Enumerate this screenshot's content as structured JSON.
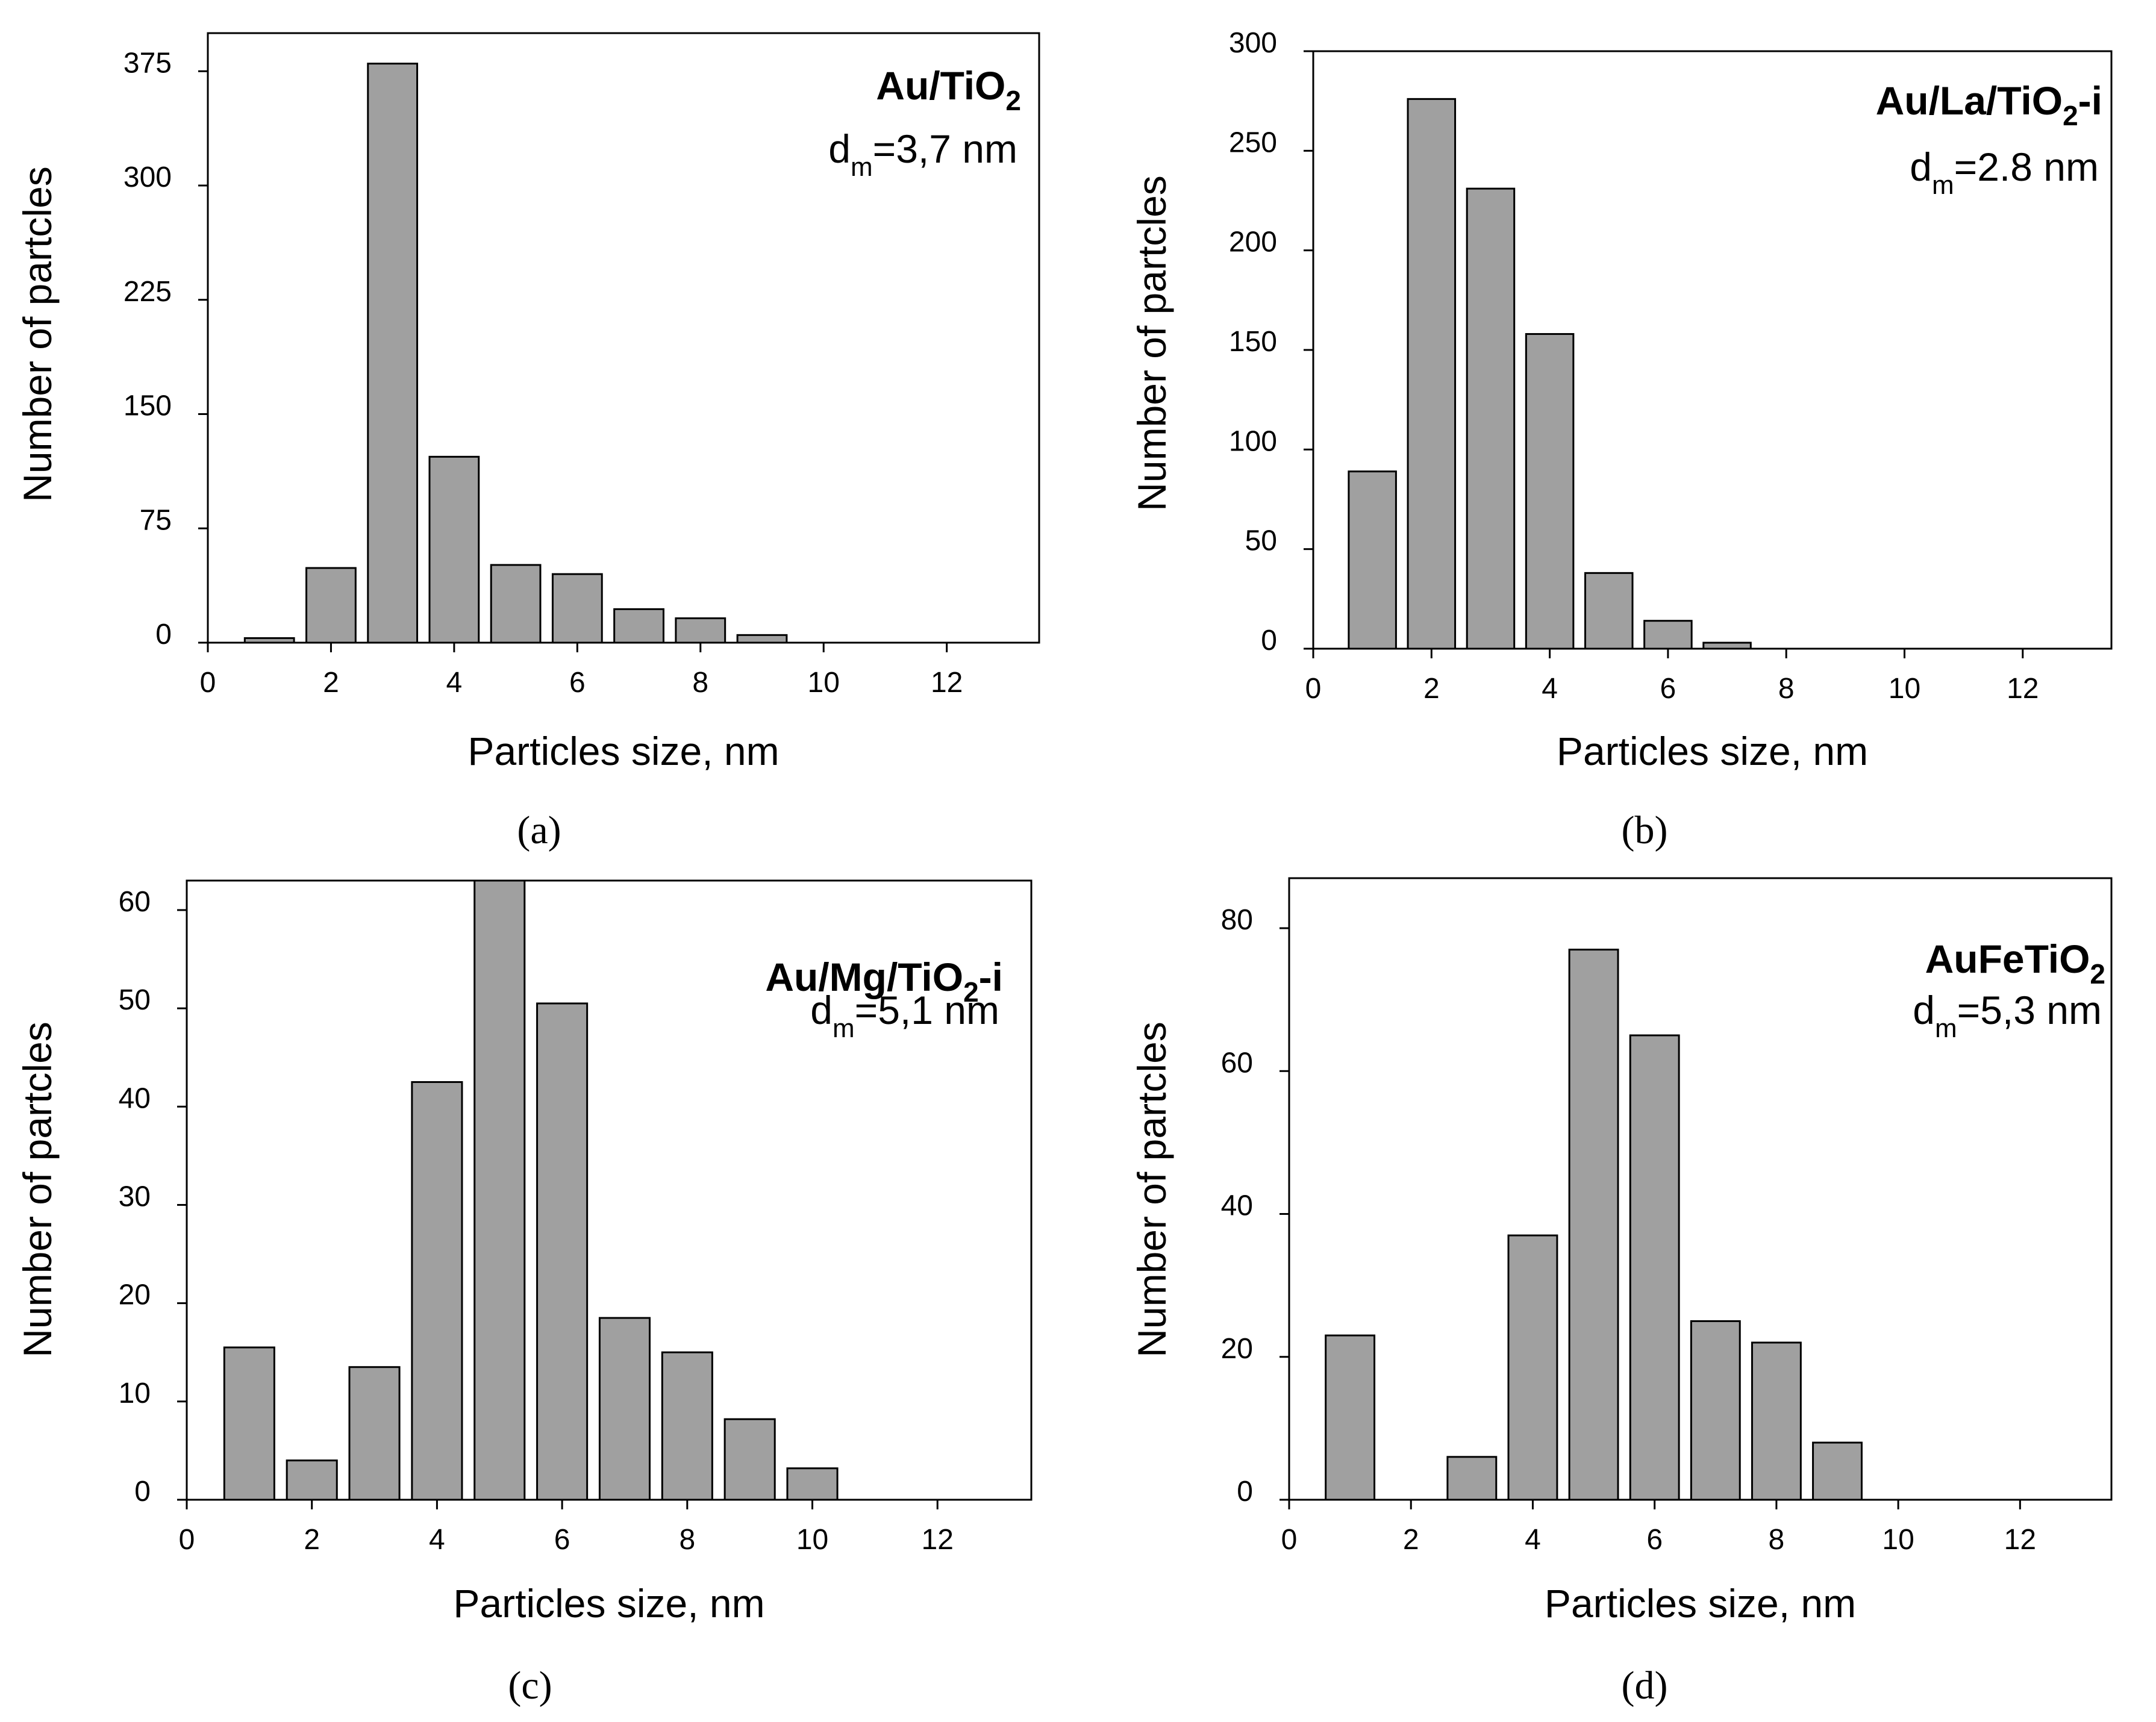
{
  "chart_data": [
    {
      "type": "bar",
      "panel": "a",
      "caption": "(a)",
      "title": "Au/TiO2",
      "title_main": "Au/TiO",
      "title_sub": "2",
      "title_suffix": "",
      "note_prefix": "d",
      "note_sub": "m",
      "note_value": "=3,7 nm",
      "xlabel": "Particles size, nm",
      "ylabel": "Number of partcles",
      "xlim": [
        0,
        13.5
      ],
      "ylim": [
        0,
        400
      ],
      "xticks": [
        0,
        2,
        4,
        6,
        8,
        10,
        12
      ],
      "yticks": [
        0,
        75,
        150,
        225,
        300,
        375
      ],
      "x": [
        1,
        2,
        3,
        4,
        5,
        6,
        7,
        8,
        9
      ],
      "values": [
        3,
        49,
        380,
        122,
        51,
        45,
        22,
        16,
        5
      ]
    },
    {
      "type": "bar",
      "panel": "b",
      "caption": "(b)",
      "title": "Au/La/TiO2-i",
      "title_main": "Au/La/TiO",
      "title_sub": "2",
      "title_suffix": "-i",
      "note_prefix": "d",
      "note_sub": "m",
      "note_value": "=2.8 nm",
      "xlabel": "Particles size, nm",
      "ylabel": "Number of partcles",
      "xlim": [
        0,
        13.5
      ],
      "ylim": [
        0,
        300
      ],
      "xticks": [
        0,
        2,
        4,
        6,
        8,
        10,
        12
      ],
      "yticks": [
        0,
        50,
        100,
        150,
        200,
        250,
        300
      ],
      "x": [
        1,
        2,
        3,
        4,
        5,
        6,
        7
      ],
      "values": [
        89,
        276,
        231,
        158,
        38,
        14,
        3
      ]
    },
    {
      "type": "bar",
      "panel": "c",
      "caption": "(c)",
      "title": "Au/Mg/TiO2-i",
      "title_main": "Au/Mg/TiO",
      "title_sub": "2",
      "title_suffix": "-i",
      "note_prefix": "d",
      "note_sub": "m",
      "note_value": "=5,1 nm",
      "xlabel": "Particles size, nm",
      "ylabel": "Number of partcles",
      "xlim": [
        0,
        13.5
      ],
      "ylim": [
        0,
        63
      ],
      "xticks": [
        0,
        2,
        4,
        6,
        8,
        10,
        12
      ],
      "yticks": [
        0,
        10,
        20,
        30,
        40,
        50,
        60
      ],
      "x": [
        1,
        2,
        3,
        4,
        5,
        6,
        7,
        8,
        9,
        10
      ],
      "values": [
        15.5,
        4,
        13.5,
        42.5,
        63,
        50.5,
        18.5,
        15,
        8.2,
        3.2
      ]
    },
    {
      "type": "bar",
      "panel": "d",
      "caption": "(d)",
      "title": "AuFeTiO2",
      "title_main": "AuFeTiO",
      "title_sub": "2",
      "title_suffix": "",
      "note_prefix": "d",
      "note_sub": "m",
      "note_value": "=5,3 nm",
      "xlabel": "Particles size, nm",
      "ylabel": "Number of partcles",
      "xlim": [
        0,
        13.5
      ],
      "ylim": [
        0,
        87
      ],
      "xticks": [
        0,
        2,
        4,
        6,
        8,
        10,
        12
      ],
      "yticks": [
        0,
        20,
        40,
        60,
        80
      ],
      "x": [
        1,
        2,
        3,
        4,
        5,
        6,
        7,
        8,
        9
      ],
      "values": [
        23,
        0,
        6,
        37,
        77,
        65,
        25,
        22,
        8
      ]
    }
  ]
}
